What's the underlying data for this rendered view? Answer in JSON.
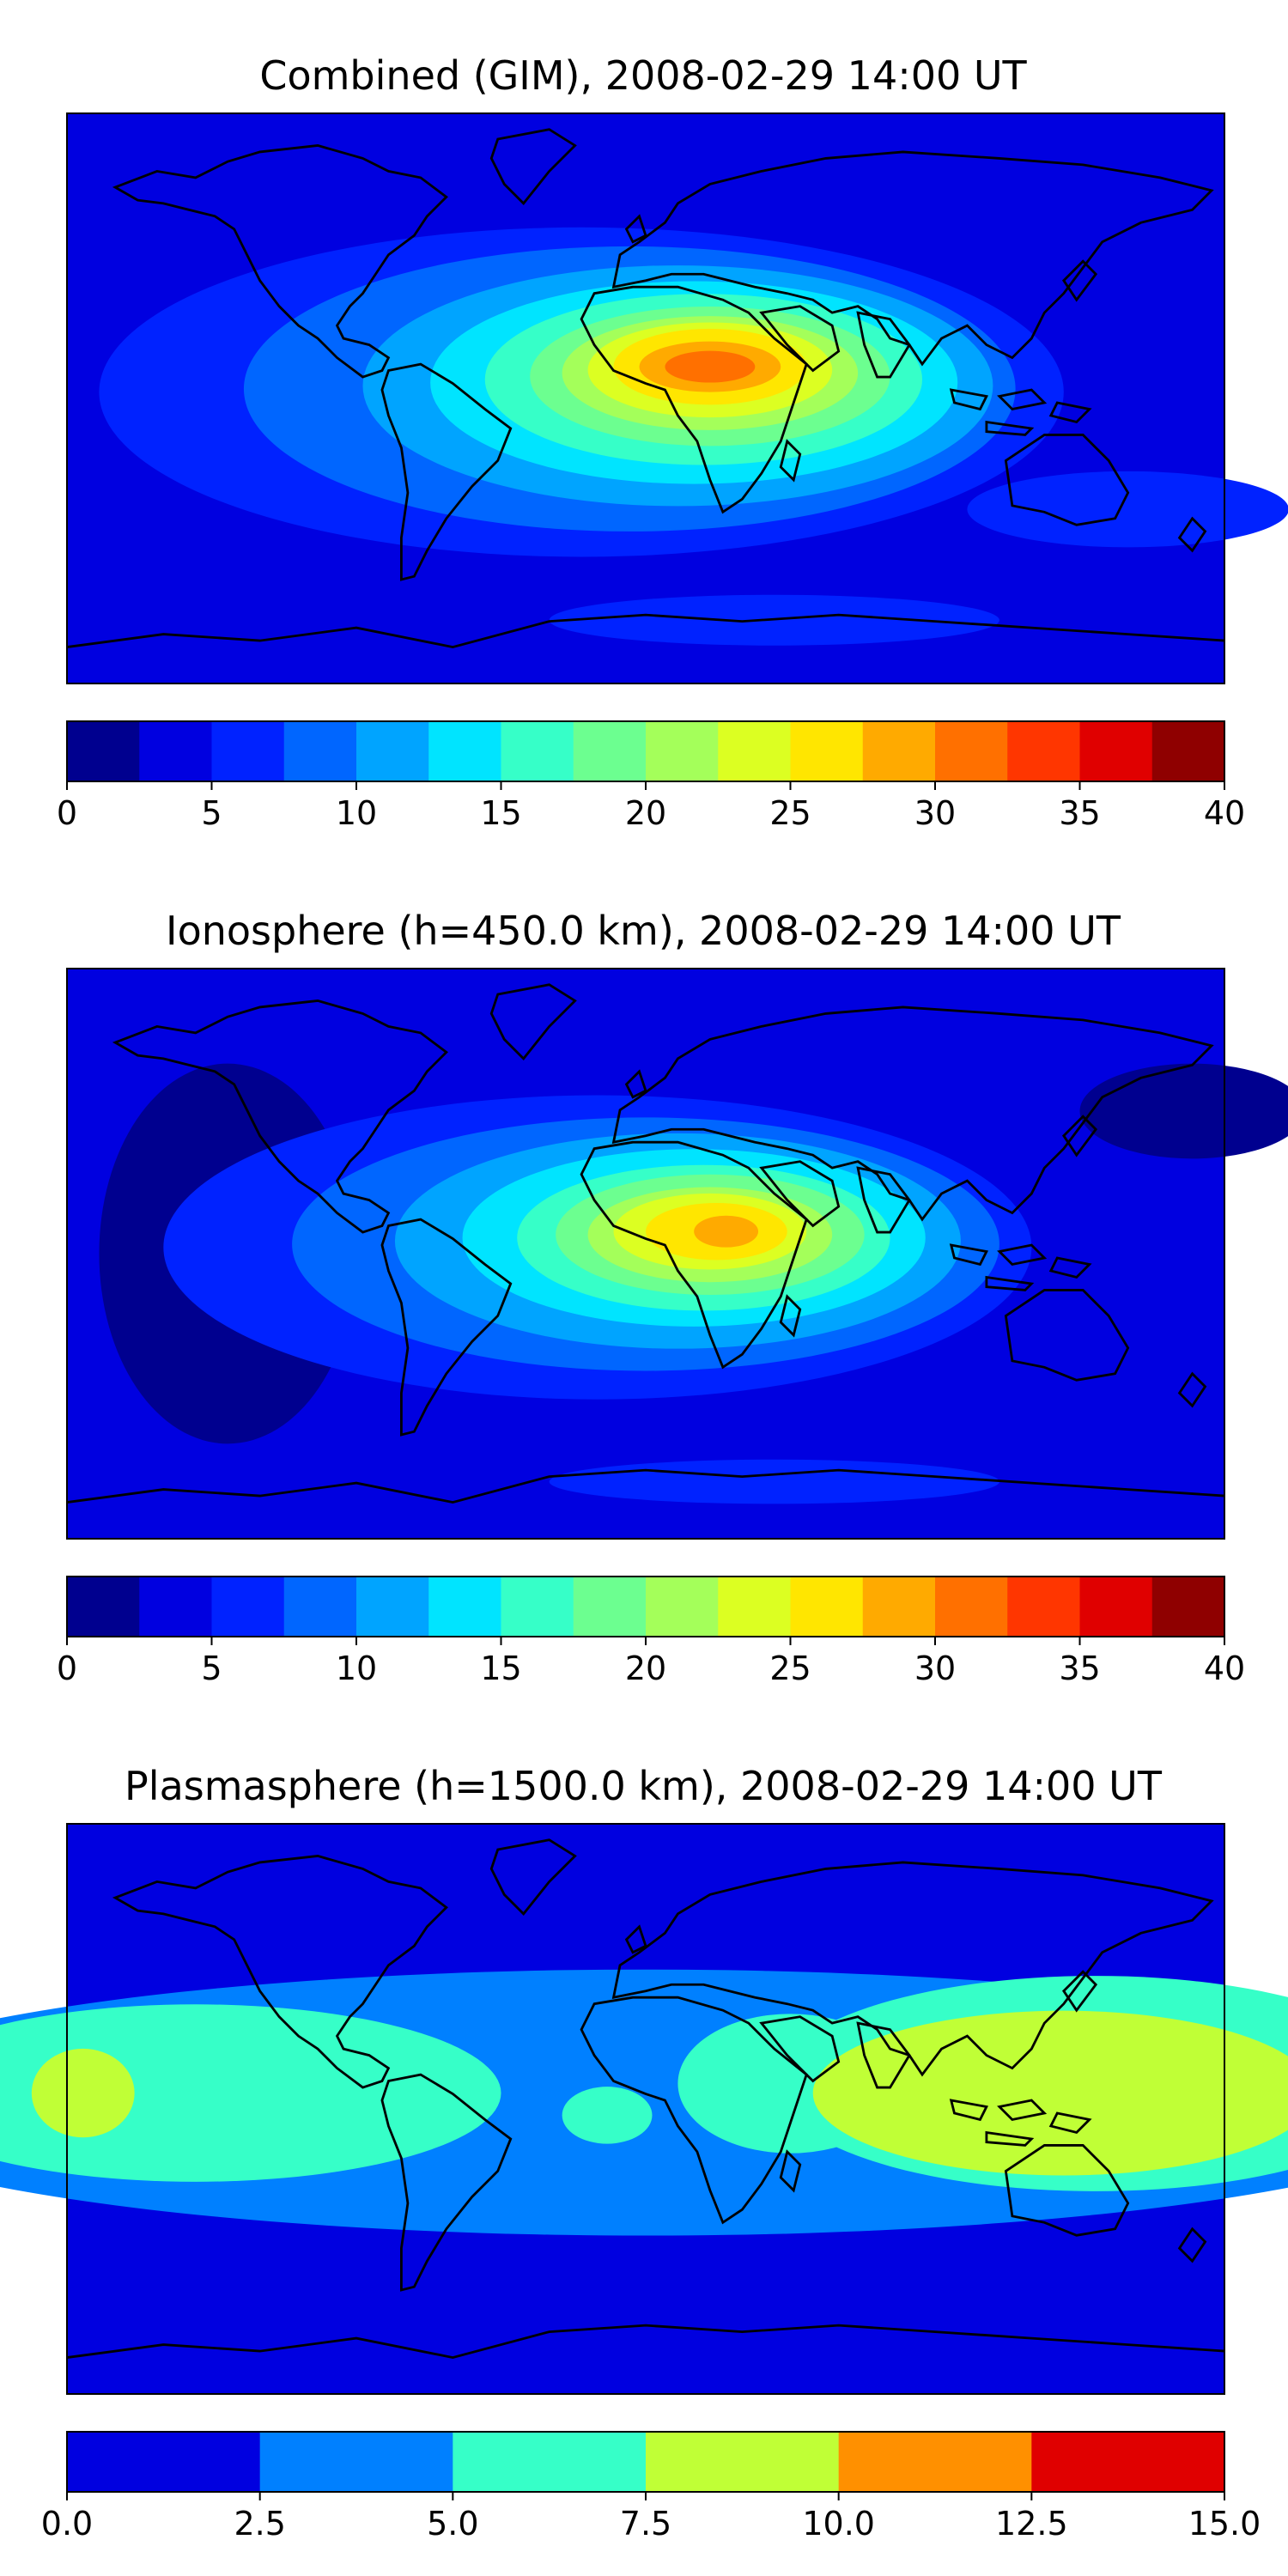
{
  "figure": {
    "description_free": true
  },
  "panels": [
    {
      "key": "combined",
      "title": "Combined (GIM), 2008-02-29 14:00 UT",
      "colorbar": {
        "ticks": [
          "0",
          "5",
          "10",
          "15",
          "20",
          "25",
          "30",
          "35",
          "40"
        ],
        "colors": [
          "#00008f",
          "#0000e0",
          "#0022ff",
          "#0066ff",
          "#00a4ff",
          "#00e4ff",
          "#36ffc8",
          "#6cff90",
          "#a4ff5a",
          "#dcff22",
          "#ffe600",
          "#ffaa00",
          "#ff7000",
          "#ff3600",
          "#e00000",
          "#8f0000"
        ],
        "levels": 16
      },
      "field": {
        "background_level": 1,
        "blobs": [
          {
            "lon": -20,
            "lat": 2,
            "rlon": 150,
            "rlat": 52,
            "level": 2
          },
          {
            "lon": -5,
            "lat": 3,
            "rlon": 120,
            "rlat": 45,
            "level": 3
          },
          {
            "lon": 10,
            "lat": 4,
            "rlon": 98,
            "rlat": 38,
            "level": 4
          },
          {
            "lon": 15,
            "lat": 5,
            "rlon": 82,
            "rlat": 32,
            "level": 5
          },
          {
            "lon": 18,
            "lat": 6,
            "rlon": 68,
            "rlat": 27,
            "level": 6
          },
          {
            "lon": 20,
            "lat": 7,
            "rlon": 56,
            "rlat": 22,
            "level": 7
          },
          {
            "lon": 20,
            "lat": 8,
            "rlon": 46,
            "rlat": 18,
            "level": 8
          },
          {
            "lon": 20,
            "lat": 9,
            "rlon": 38,
            "rlat": 15,
            "level": 9
          },
          {
            "lon": 20,
            "lat": 10,
            "rlon": 30,
            "rlat": 12,
            "level": 10
          },
          {
            "lon": 20,
            "lat": 10,
            "rlon": 22,
            "rlat": 8,
            "level": 11
          },
          {
            "lon": 20,
            "lat": 10,
            "rlon": 14,
            "rlat": 5,
            "level": 12
          },
          {
            "lon": 40,
            "lat": -70,
            "rlon": 70,
            "rlat": 8,
            "level": 2
          },
          {
            "lon": 150,
            "lat": -35,
            "rlon": 50,
            "rlat": 12,
            "level": 2
          }
        ]
      }
    },
    {
      "key": "ionosphere",
      "title": "Ionosphere  (h=450.0 km), 2008-02-29 14:00 UT",
      "colorbar": {
        "ticks": [
          "0",
          "5",
          "10",
          "15",
          "20",
          "25",
          "30",
          "35",
          "40"
        ],
        "colors": [
          "#00008f",
          "#0000e0",
          "#0022ff",
          "#0066ff",
          "#00a4ff",
          "#00e4ff",
          "#36ffc8",
          "#6cff90",
          "#a4ff5a",
          "#dcff22",
          "#ffe600",
          "#ffaa00",
          "#ff7000",
          "#ff3600",
          "#e00000",
          "#8f0000"
        ],
        "levels": 16
      },
      "field": {
        "background_level": 1,
        "blobs": [
          {
            "lon": -130,
            "lat": 0,
            "rlon": 40,
            "rlat": 60,
            "level": 0
          },
          {
            "lon": 170,
            "lat": 45,
            "rlon": 35,
            "rlat": 15,
            "level": 0
          },
          {
            "lon": -15,
            "lat": 2,
            "rlon": 135,
            "rlat": 48,
            "level": 2
          },
          {
            "lon": 0,
            "lat": 3,
            "rlon": 110,
            "rlat": 40,
            "level": 3
          },
          {
            "lon": 10,
            "lat": 4,
            "rlon": 88,
            "rlat": 34,
            "level": 4
          },
          {
            "lon": 15,
            "lat": 5,
            "rlon": 72,
            "rlat": 28,
            "level": 5
          },
          {
            "lon": 18,
            "lat": 5,
            "rlon": 58,
            "rlat": 23,
            "level": 6
          },
          {
            "lon": 20,
            "lat": 6,
            "rlon": 48,
            "rlat": 19,
            "level": 7
          },
          {
            "lon": 20,
            "lat": 6,
            "rlon": 38,
            "rlat": 15,
            "level": 8
          },
          {
            "lon": 20,
            "lat": 7,
            "rlon": 30,
            "rlat": 12,
            "level": 9
          },
          {
            "lon": 22,
            "lat": 7,
            "rlon": 22,
            "rlat": 9,
            "level": 10
          },
          {
            "lon": 25,
            "lat": 7,
            "rlon": 10,
            "rlat": 5,
            "level": 11
          },
          {
            "lon": 40,
            "lat": -72,
            "rlon": 70,
            "rlat": 7,
            "level": 2
          }
        ]
      }
    },
    {
      "key": "plasmasphere",
      "title": "Plasmasphere (h=1500.0 km), 2008-02-29 14:00 UT",
      "colorbar": {
        "ticks": [
          "0.0",
          "2.5",
          "5.0",
          "7.5",
          "10.0",
          "12.5",
          "15.0"
        ],
        "colors": [
          "#0000e0",
          "#0080ff",
          "#36ffc8",
          "#c0ff36",
          "#ff9000",
          "#e00000"
        ],
        "levels": 6
      },
      "field": {
        "background_level": 0,
        "blobs": [
          {
            "lon": 0,
            "lat": 2,
            "rlon": 260,
            "rlat": 42,
            "level": 1
          },
          {
            "lon": -140,
            "lat": 5,
            "rlon": 95,
            "rlat": 28,
            "level": 2
          },
          {
            "lon": 140,
            "lat": 8,
            "rlon": 100,
            "rlat": 34,
            "level": 2
          },
          {
            "lon": 45,
            "lat": 8,
            "rlon": 35,
            "rlat": 22,
            "level": 2
          },
          {
            "lon": -12,
            "lat": -2,
            "rlon": 14,
            "rlat": 9,
            "level": 2
          },
          {
            "lon": 130,
            "lat": 5,
            "rlon": 78,
            "rlat": 26,
            "level": 3
          },
          {
            "lon": -175,
            "lat": 5,
            "rlon": 16,
            "rlat": 14,
            "level": 3
          }
        ]
      }
    }
  ]
}
